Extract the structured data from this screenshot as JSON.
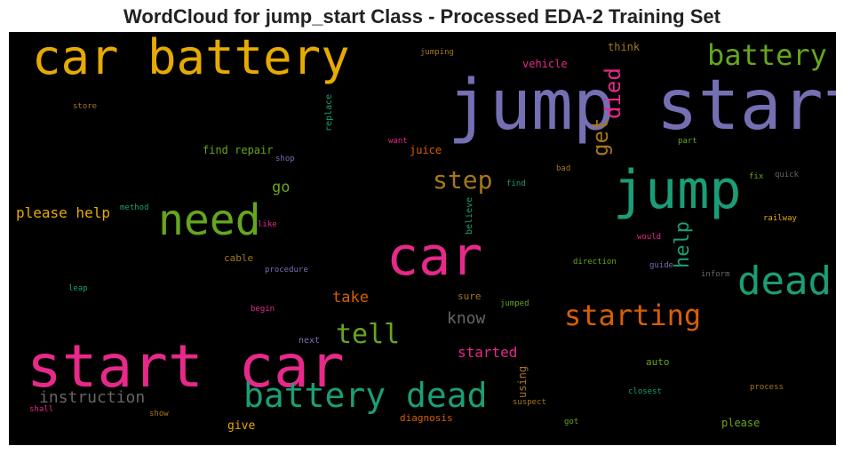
{
  "title": "WordCloud for jump_start Class - Processed EDA-2 Training Set",
  "colors": {
    "background": "#000000",
    "orange": "#e0a010",
    "purple": "#7570b3",
    "green": "#1b9e77",
    "olive": "#66a61e",
    "pink": "#e7298a",
    "dark_orange": "#d95f02",
    "brown": "#a6761d",
    "gray": "#666666"
  },
  "words": [
    {
      "text": "jump start",
      "color": "#7570b3"
    },
    {
      "text": "car battery",
      "color": "#e6ab02"
    },
    {
      "text": "start car",
      "color": "#e7298a"
    },
    {
      "text": "car",
      "color": "#e7298a"
    },
    {
      "text": "jump",
      "color": "#1b9e77"
    },
    {
      "text": "need",
      "color": "#66a61e"
    },
    {
      "text": "battery dead",
      "color": "#1b9e77"
    },
    {
      "text": "dead",
      "color": "#1b9e77"
    },
    {
      "text": "starting",
      "color": "#d95f02"
    },
    {
      "text": "battery",
      "color": "#66a61e"
    },
    {
      "text": "tell",
      "color": "#66a61e"
    },
    {
      "text": "step",
      "color": "#a6761d"
    },
    {
      "text": "died",
      "color": "#e7298a"
    },
    {
      "text": "get",
      "color": "#a6761d"
    },
    {
      "text": "help",
      "color": "#1b9e77"
    },
    {
      "text": "please help",
      "color": "#e6ab02"
    },
    {
      "text": "instruction",
      "color": "#666666"
    },
    {
      "text": "know",
      "color": "#666666"
    },
    {
      "text": "go",
      "color": "#66a61e"
    },
    {
      "text": "take",
      "color": "#d95f02"
    },
    {
      "text": "started",
      "color": "#e7298a"
    },
    {
      "text": "give",
      "color": "#e6ab02"
    },
    {
      "text": "find repair",
      "color": "#66a61e"
    },
    {
      "text": "juice",
      "color": "#d95f02"
    },
    {
      "text": "vehicle",
      "color": "#e7298a"
    },
    {
      "text": "think",
      "color": "#a6761d"
    },
    {
      "text": "jumping",
      "color": "#a6761d"
    },
    {
      "text": "store",
      "color": "#a6761d"
    },
    {
      "text": "replace",
      "color": "#1b9e77"
    },
    {
      "text": "want",
      "color": "#e7298a"
    },
    {
      "text": "shop",
      "color": "#7570b3"
    },
    {
      "text": "part",
      "color": "#66a61e"
    },
    {
      "text": "bad",
      "color": "#a6761d"
    },
    {
      "text": "find",
      "color": "#1b9e77"
    },
    {
      "text": "fix",
      "color": "#66a61e"
    },
    {
      "text": "quick",
      "color": "#666666"
    },
    {
      "text": "method",
      "color": "#1b9e77"
    },
    {
      "text": "believe",
      "color": "#1b9e77"
    },
    {
      "text": "like",
      "color": "#e7298a"
    },
    {
      "text": "railway",
      "color": "#e6ab02"
    },
    {
      "text": "would",
      "color": "#e7298a"
    },
    {
      "text": "cable",
      "color": "#a6761d"
    },
    {
      "text": "procedure",
      "color": "#7570b3"
    },
    {
      "text": "direction",
      "color": "#66a61e"
    },
    {
      "text": "guide",
      "color": "#7570b3"
    },
    {
      "text": "inform",
      "color": "#666666"
    },
    {
      "text": "leap",
      "color": "#1b9e77"
    },
    {
      "text": "begin",
      "color": "#e7298a"
    },
    {
      "text": "sure",
      "color": "#a6761d"
    },
    {
      "text": "jumped",
      "color": "#66a61e"
    },
    {
      "text": "next",
      "color": "#7570b3"
    },
    {
      "text": "auto",
      "color": "#66a61e"
    },
    {
      "text": "using",
      "color": "#a6761d"
    },
    {
      "text": "closest",
      "color": "#1b9e77"
    },
    {
      "text": "process",
      "color": "#a6761d"
    },
    {
      "text": "suspect",
      "color": "#a6761d"
    },
    {
      "text": "diagnosis",
      "color": "#d95f02"
    },
    {
      "text": "shall",
      "color": "#e7298a"
    },
    {
      "text": "show",
      "color": "#a6761d"
    },
    {
      "text": "got",
      "color": "#66a61e"
    },
    {
      "text": "please",
      "color": "#66a61e"
    }
  ]
}
